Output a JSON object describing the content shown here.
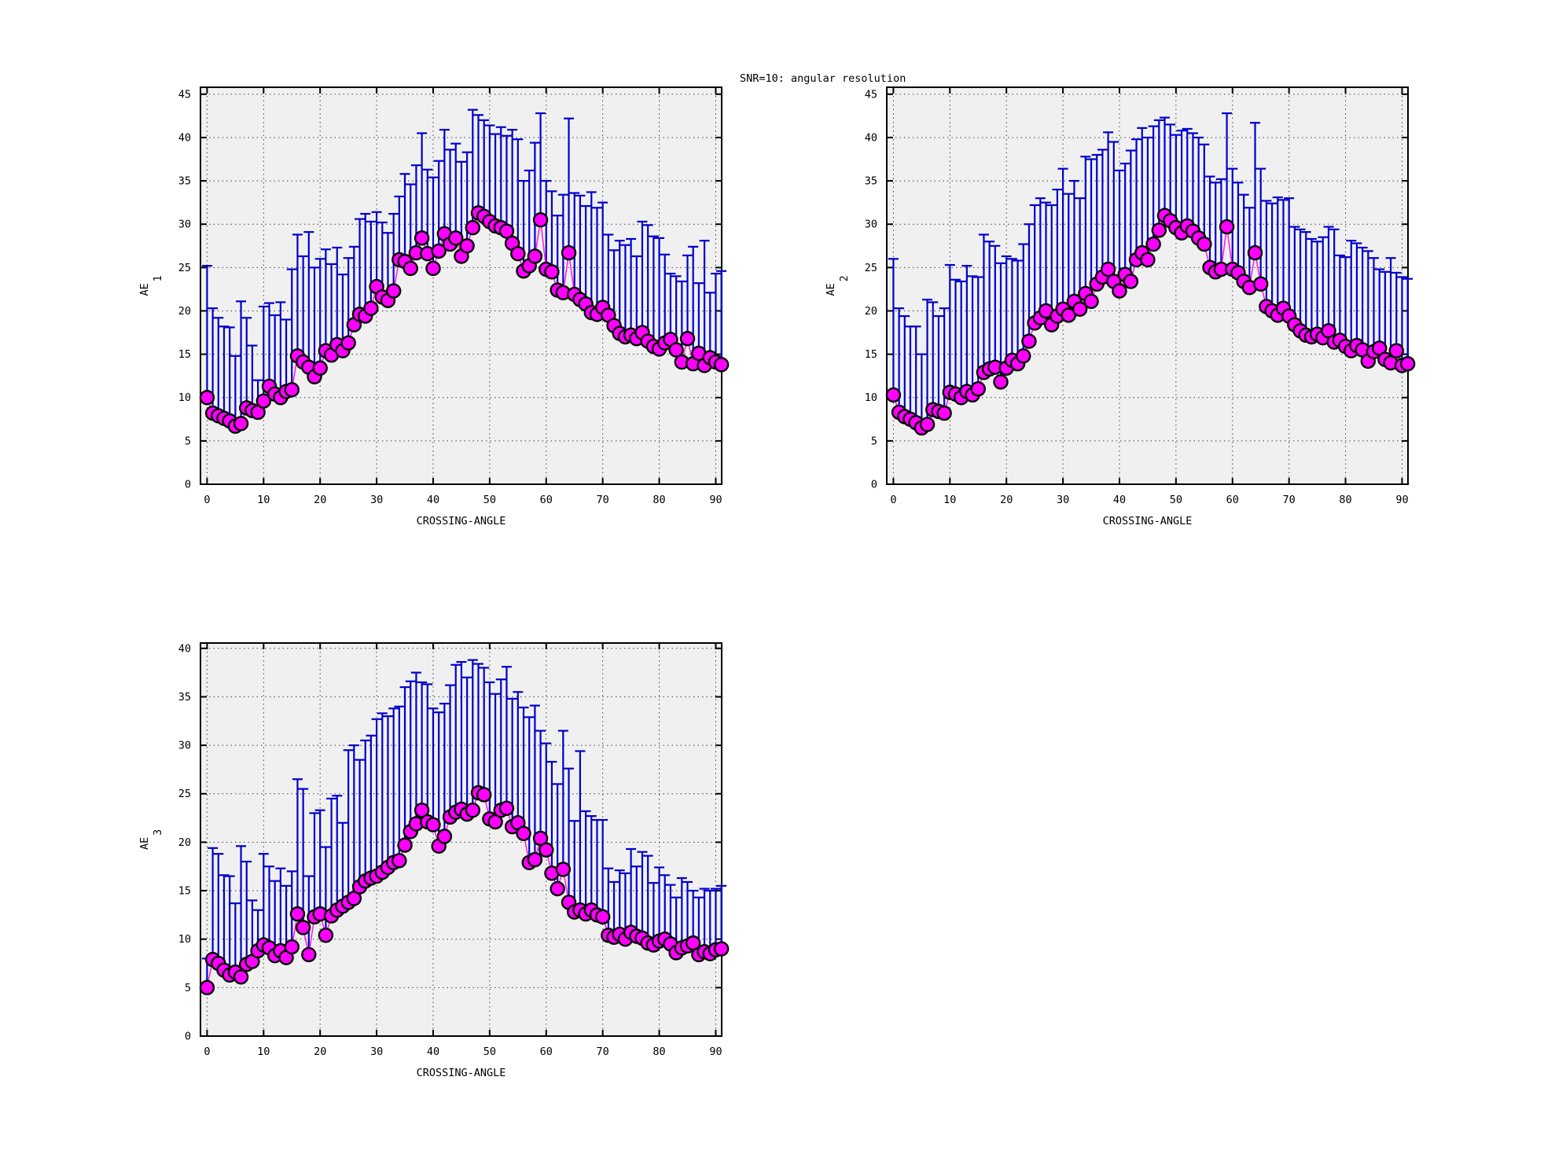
{
  "title": "SNR=10: angular resolution",
  "colors": {
    "page_bg": "#ffffff",
    "plot_bg": "#f0f0f0",
    "frame": "#000000",
    "grid": "#222222",
    "error_bar": "#0000cc",
    "point_fill": "#ff00ff",
    "point_edge": "#000000",
    "series_line": "#ff22dd",
    "text": "#000000"
  },
  "chart_data": [
    {
      "type": "scatter",
      "name": "ae1",
      "ylabel": "AE",
      "ylabel_sub": "1",
      "xlabel": "CROSSING-ANGLE",
      "x_start": 0,
      "x_step": 1,
      "xlim": [
        -1.17,
        91.05
      ],
      "ylim": [
        0,
        45.8
      ],
      "xticks": [
        0,
        10,
        20,
        30,
        40,
        50,
        60,
        70,
        80,
        90
      ],
      "yticks": [
        0,
        5,
        10,
        15,
        20,
        25,
        30,
        35,
        40,
        45
      ],
      "grid": true,
      "legend": "none",
      "series": [
        {
          "name": "mean",
          "role": "points",
          "values": [
            10.0,
            8.2,
            7.9,
            7.6,
            7.3,
            6.7,
            7.0,
            8.8,
            8.5,
            8.3,
            9.6,
            11.3,
            10.4,
            10.0,
            10.7,
            10.9,
            14.8,
            14.1,
            13.5,
            12.4,
            13.4,
            15.4,
            14.9,
            16.1,
            15.4,
            16.3,
            18.4,
            19.6,
            19.4,
            20.3,
            22.8,
            21.6,
            21.2,
            22.3,
            25.9,
            25.7,
            24.9,
            26.7,
            28.4,
            26.6,
            24.9,
            26.9,
            28.9,
            27.7,
            28.4,
            26.3,
            27.5,
            29.6,
            31.3,
            30.9,
            30.3,
            29.8,
            29.6,
            29.2,
            27.8,
            26.6,
            24.6,
            25.2,
            26.3,
            30.5,
            24.8,
            24.5,
            22.4,
            22.1,
            26.7,
            21.9,
            21.3,
            20.8,
            19.8,
            19.6,
            20.4,
            19.5,
            18.3,
            17.4,
            17.0,
            17.2,
            16.8,
            17.5,
            16.5,
            15.9,
            15.6,
            16.3,
            16.7,
            15.5,
            14.1,
            16.8,
            13.9,
            15.1,
            13.7,
            14.6,
            14.1,
            13.8
          ]
        },
        {
          "name": "upper-error",
          "role": "errorbar-top",
          "values": [
            25.2,
            20.3,
            19.2,
            18.2,
            18.1,
            14.8,
            21.1,
            19.2,
            16.0,
            12.0,
            20.5,
            20.9,
            19.5,
            21.0,
            19.0,
            24.8,
            28.8,
            26.3,
            29.1,
            25.0,
            26.0,
            27.1,
            25.4,
            27.3,
            24.2,
            26.1,
            27.4,
            30.6,
            31.2,
            30.3,
            31.4,
            30.2,
            29.0,
            31.2,
            33.2,
            35.8,
            34.6,
            36.8,
            40.5,
            36.3,
            35.4,
            37.3,
            40.9,
            38.6,
            39.3,
            37.2,
            38.3,
            43.2,
            42.6,
            42.0,
            41.4,
            40.4,
            41.2,
            40.2,
            40.9,
            39.8,
            35.0,
            36.2,
            39.4,
            42.8,
            35.0,
            33.8,
            31.0,
            33.4,
            42.2,
            33.6,
            33.3,
            32.1,
            33.7,
            31.9,
            32.5,
            28.8,
            27.0,
            28.1,
            27.6,
            28.3,
            26.3,
            30.3,
            29.9,
            28.6,
            28.4,
            26.5,
            24.3,
            24.0,
            23.4,
            26.4,
            27.4,
            23.2,
            28.1,
            22.1,
            24.3,
            24.6
          ]
        }
      ]
    },
    {
      "type": "scatter",
      "name": "ae2",
      "ylabel": "AE",
      "ylabel_sub": "2",
      "xlabel": "CROSSING-ANGLE",
      "x_start": 0,
      "x_step": 1,
      "xlim": [
        -1.17,
        91.05
      ],
      "ylim": [
        0,
        45.8
      ],
      "xticks": [
        0,
        10,
        20,
        30,
        40,
        50,
        60,
        70,
        80,
        90
      ],
      "yticks": [
        0,
        5,
        10,
        15,
        20,
        25,
        30,
        35,
        40,
        45
      ],
      "grid": true,
      "legend": "none",
      "series": [
        {
          "name": "mean",
          "role": "points",
          "values": [
            10.3,
            8.3,
            7.8,
            7.5,
            7.1,
            6.5,
            6.9,
            8.6,
            8.4,
            8.2,
            10.6,
            10.4,
            10.0,
            10.7,
            10.3,
            11.0,
            12.9,
            13.3,
            13.5,
            11.8,
            13.4,
            14.3,
            13.9,
            14.8,
            16.5,
            18.6,
            19.2,
            20.0,
            18.4,
            19.4,
            20.2,
            19.5,
            21.1,
            20.2,
            22.0,
            21.1,
            23.1,
            23.9,
            24.8,
            23.4,
            22.3,
            24.2,
            23.4,
            25.9,
            26.7,
            25.9,
            27.7,
            29.3,
            31.0,
            30.4,
            29.6,
            29.0,
            29.8,
            29.2,
            28.4,
            27.7,
            25.0,
            24.5,
            24.8,
            29.7,
            24.8,
            24.4,
            23.4,
            22.7,
            26.7,
            23.1,
            20.5,
            20.0,
            19.5,
            20.3,
            19.4,
            18.4,
            17.7,
            17.2,
            17.0,
            17.3,
            16.9,
            17.7,
            16.4,
            16.6,
            15.9,
            15.4,
            16.0,
            15.5,
            14.2,
            15.3,
            15.7,
            14.4,
            14.0,
            15.4,
            13.7,
            13.9
          ]
        },
        {
          "name": "upper-error",
          "role": "errorbar-top",
          "values": [
            26.0,
            20.3,
            19.4,
            18.2,
            18.2,
            15.0,
            21.3,
            21.0,
            19.4,
            20.3,
            25.3,
            23.6,
            23.4,
            25.2,
            24.0,
            23.9,
            28.8,
            28.0,
            27.5,
            25.5,
            26.3,
            26.0,
            25.8,
            27.7,
            30.0,
            32.2,
            33.0,
            32.5,
            32.2,
            34.0,
            36.4,
            33.5,
            35.0,
            33.0,
            37.8,
            37.5,
            38.0,
            38.6,
            40.6,
            39.5,
            36.2,
            37.0,
            38.5,
            39.8,
            41.1,
            40.0,
            41.3,
            42.0,
            42.3,
            41.5,
            40.3,
            40.8,
            41.0,
            40.5,
            40.0,
            39.2,
            35.5,
            34.8,
            35.2,
            42.8,
            36.4,
            34.8,
            33.4,
            31.9,
            41.7,
            36.4,
            32.7,
            32.4,
            33.1,
            32.8,
            33.0,
            29.7,
            29.4,
            29.1,
            28.3,
            28.0,
            28.5,
            29.7,
            29.4,
            26.4,
            26.2,
            28.1,
            27.8,
            27.3,
            26.9,
            26.1,
            24.8,
            24.5,
            26.1,
            24.4,
            23.9,
            23.7
          ]
        }
      ]
    },
    {
      "type": "scatter",
      "name": "ae3",
      "ylabel": "AE",
      "ylabel_sub": "3",
      "xlabel": "CROSSING-ANGLE",
      "x_start": 0,
      "x_step": 1,
      "xlim": [
        -1.17,
        91.05
      ],
      "ylim": [
        0,
        40.55
      ],
      "xticks": [
        0,
        10,
        20,
        30,
        40,
        50,
        60,
        70,
        80,
        90
      ],
      "yticks": [
        0,
        5,
        10,
        15,
        20,
        25,
        30,
        35,
        40
      ],
      "grid": true,
      "legend": "none",
      "series": [
        {
          "name": "mean",
          "role": "points",
          "values": [
            5.0,
            7.9,
            7.5,
            6.8,
            6.3,
            6.6,
            6.1,
            7.4,
            7.7,
            8.8,
            9.4,
            9.1,
            8.3,
            8.8,
            8.1,
            9.2,
            12.6,
            11.2,
            8.4,
            12.3,
            12.6,
            10.4,
            12.4,
            13.0,
            13.4,
            13.8,
            14.2,
            15.4,
            16.0,
            16.3,
            16.5,
            16.9,
            17.4,
            17.9,
            18.1,
            19.7,
            21.1,
            21.9,
            23.3,
            22.1,
            21.8,
            19.6,
            20.6,
            22.6,
            23.1,
            23.4,
            22.9,
            23.3,
            25.1,
            24.9,
            22.4,
            22.1,
            23.3,
            23.5,
            21.6,
            22.0,
            20.9,
            17.9,
            18.2,
            20.4,
            19.2,
            16.8,
            15.2,
            17.2,
            13.8,
            12.8,
            13.0,
            12.6,
            13.0,
            12.5,
            12.3,
            10.4,
            10.2,
            10.5,
            10.0,
            10.7,
            10.3,
            10.1,
            9.6,
            9.4,
            9.8,
            10.0,
            9.5,
            8.6,
            9.1,
            9.3,
            9.6,
            8.4,
            8.7,
            8.5,
            8.9,
            9.0
          ]
        },
        {
          "name": "upper-error",
          "role": "errorbar-top",
          "values": [
            8.0,
            19.4,
            18.8,
            16.6,
            16.5,
            13.7,
            19.6,
            18.0,
            14.0,
            13.0,
            18.8,
            17.5,
            16.0,
            17.3,
            15.5,
            17.0,
            26.5,
            25.5,
            16.5,
            23.0,
            23.3,
            19.5,
            24.5,
            24.8,
            22.0,
            29.5,
            30.0,
            28.5,
            30.5,
            31.0,
            32.7,
            33.3,
            33.0,
            33.8,
            34.0,
            36.0,
            36.6,
            37.5,
            36.5,
            36.3,
            33.8,
            33.4,
            34.3,
            36.2,
            38.3,
            38.6,
            37.0,
            38.8,
            38.4,
            38.0,
            36.5,
            35.3,
            36.8,
            38.1,
            34.8,
            35.5,
            33.9,
            32.9,
            34.1,
            31.5,
            30.2,
            28.3,
            26.0,
            31.5,
            27.6,
            22.2,
            29.4,
            23.2,
            22.7,
            22.3,
            22.3,
            17.3,
            15.9,
            17.1,
            16.8,
            19.3,
            17.5,
            19.0,
            18.6,
            15.8,
            17.4,
            16.6,
            15.6,
            14.3,
            16.3,
            15.9,
            15.0,
            14.3,
            15.2,
            15.0,
            15.2,
            15.5
          ]
        }
      ]
    }
  ]
}
